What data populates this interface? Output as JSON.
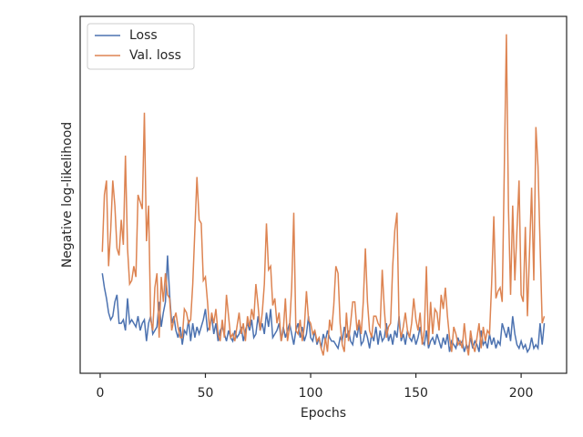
{
  "chart_data": {
    "type": "line",
    "xlabel": "Epochs",
    "ylabel": "Negative log-likelihood",
    "xlim": [
      -9.5,
      221.6
    ],
    "xticks": [
      0,
      50,
      100,
      150,
      200
    ],
    "ylim": [
      0,
      100
    ],
    "legend": "upper left",
    "x": [
      1,
      2,
      3,
      4,
      5,
      6,
      7,
      8,
      9,
      10,
      11,
      12,
      13,
      14,
      15,
      16,
      17,
      18,
      19,
      20,
      21,
      22,
      23,
      24,
      25,
      26,
      27,
      28,
      29,
      30,
      31,
      32,
      33,
      34,
      35,
      36,
      37,
      38,
      39,
      40,
      41,
      42,
      43,
      44,
      45,
      46,
      47,
      48,
      49,
      50,
      51,
      52,
      53,
      54,
      55,
      56,
      57,
      58,
      59,
      60,
      61,
      62,
      63,
      64,
      65,
      66,
      67,
      68,
      69,
      70,
      71,
      72,
      73,
      74,
      75,
      76,
      77,
      78,
      79,
      80,
      81,
      82,
      83,
      84,
      85,
      86,
      87,
      88,
      89,
      90,
      91,
      92,
      93,
      94,
      95,
      96,
      97,
      98,
      99,
      100,
      101,
      102,
      103,
      104,
      105,
      106,
      107,
      108,
      109,
      110,
      111,
      112,
      113,
      114,
      115,
      116,
      117,
      118,
      119,
      120,
      121,
      122,
      123,
      124,
      125,
      126,
      127,
      128,
      129,
      130,
      131,
      132,
      133,
      134,
      135,
      136,
      137,
      138,
      139,
      140,
      141,
      142,
      143,
      144,
      145,
      146,
      147,
      148,
      149,
      150,
      151,
      152,
      153,
      154,
      155,
      156,
      157,
      158,
      159,
      160,
      161,
      162,
      163,
      164,
      165,
      166,
      167,
      168,
      169,
      170,
      171,
      172,
      173,
      174,
      175,
      176,
      177,
      178,
      179,
      180,
      181,
      182,
      183,
      184,
      185,
      186,
      187,
      188,
      189,
      190,
      191,
      192,
      193,
      194,
      195,
      196,
      197,
      198,
      199,
      200,
      201,
      202,
      203,
      204,
      205,
      206,
      207,
      208,
      209,
      210,
      211
    ],
    "series": [
      {
        "name": "Loss",
        "color": "#4c72b0",
        "values": [
          28,
          24,
          21,
          17,
          15,
          16,
          20,
          22,
          14,
          14,
          15,
          12,
          21,
          14,
          15,
          14,
          13,
          16,
          12,
          14,
          15,
          9,
          14,
          16,
          11,
          12,
          13,
          20,
          13,
          17,
          20,
          33,
          22,
          14,
          16,
          12,
          10,
          13,
          8,
          12,
          11,
          15,
          9,
          14,
          10,
          13,
          11,
          13,
          15,
          18,
          12,
          13,
          16,
          11,
          14,
          9,
          12,
          13,
          11,
          9,
          12,
          10,
          9,
          12,
          10,
          11,
          13,
          9,
          12,
          14,
          12,
          15,
          10,
          11,
          16,
          12,
          14,
          11,
          17,
          13,
          18,
          10,
          11,
          12,
          14,
          9,
          13,
          10,
          12,
          14,
          11,
          8,
          12,
          14,
          10,
          13,
          9,
          11,
          16,
          10,
          9,
          12,
          8,
          10,
          7,
          11,
          9,
          12,
          10,
          9,
          9,
          8,
          7,
          10,
          9,
          13,
          10,
          12,
          9,
          8,
          12,
          10,
          14,
          8,
          9,
          12,
          10,
          7,
          11,
          9,
          13,
          8,
          12,
          9,
          10,
          14,
          9,
          11,
          8,
          12,
          10,
          16,
          9,
          11,
          8,
          12,
          10,
          9,
          11,
          8,
          10,
          13,
          9,
          8,
          12,
          7,
          9,
          10,
          8,
          11,
          9,
          7,
          10,
          8,
          11,
          6,
          9,
          8,
          7,
          10,
          8,
          9,
          6,
          8,
          7,
          10,
          7,
          9,
          8,
          6,
          12,
          8,
          9,
          7,
          11,
          8,
          10,
          7,
          9,
          8,
          14,
          12,
          10,
          13,
          9,
          16,
          11,
          8,
          7,
          9,
          7,
          8,
          6,
          7,
          10,
          7,
          8,
          7,
          14,
          8,
          14
        ]
      },
      {
        "name": "Val. loss",
        "color": "#dd8452",
        "values": [
          34,
          50,
          54,
          30,
          40,
          54,
          47,
          35,
          33,
          43,
          36,
          61,
          35,
          25,
          26,
          30,
          27,
          50,
          48,
          46,
          73,
          37,
          47,
          15,
          12,
          24,
          28,
          10,
          27,
          20,
          28,
          22,
          21,
          12,
          15,
          17,
          13,
          10,
          10,
          18,
          17,
          14,
          15,
          25,
          40,
          55,
          43,
          42,
          26,
          27,
          20,
          12,
          17,
          14,
          18,
          11,
          9,
          15,
          10,
          22,
          16,
          10,
          11,
          9,
          13,
          17,
          11,
          14,
          9,
          16,
          13,
          18,
          15,
          25,
          19,
          12,
          17,
          25,
          42,
          29,
          30,
          19,
          21,
          14,
          17,
          9,
          12,
          21,
          9,
          13,
          24,
          45,
          12,
          11,
          15,
          9,
          13,
          23,
          15,
          14,
          11,
          12,
          9,
          10,
          7,
          5,
          10,
          6,
          15,
          12,
          19,
          30,
          28,
          14,
          8,
          6,
          17,
          9,
          14,
          20,
          20,
          12,
          15,
          11,
          20,
          35,
          20,
          12,
          10,
          16,
          16,
          14,
          13,
          29,
          18,
          10,
          13,
          14,
          30,
          40,
          45,
          14,
          10,
          13,
          17,
          12,
          10,
          14,
          21,
          15,
          12,
          17,
          8,
          12,
          30,
          8,
          20,
          11,
          18,
          17,
          12,
          22,
          18,
          24,
          16,
          10,
          6,
          13,
          11,
          8,
          9,
          7,
          14,
          8,
          5,
          12,
          8,
          6,
          10,
          14,
          7,
          13,
          9,
          12,
          11,
          25,
          44,
          21,
          23,
          24,
          20,
          57,
          95,
          46,
          22,
          47,
          26,
          40,
          54,
          22,
          20,
          41,
          16,
          34,
          52,
          26,
          69,
          58,
          36,
          14,
          16
        ]
      }
    ]
  }
}
